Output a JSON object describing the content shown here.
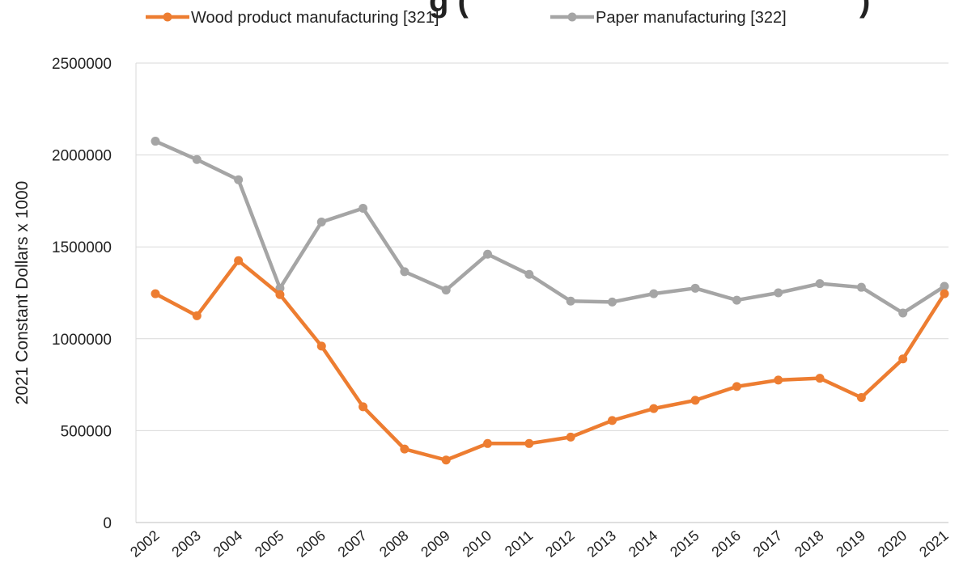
{
  "chart_data": {
    "type": "line",
    "title_fragment": "g (",
    "title_suffix_fragment": ")",
    "ylabel": "2021 Constant Dollars x 1000",
    "xlabel": "",
    "categories": [
      "2002",
      "2003",
      "2004",
      "2005",
      "2006",
      "2007",
      "2008",
      "2009",
      "2010",
      "2011",
      "2012",
      "2013",
      "2014",
      "2015",
      "2016",
      "2017",
      "2018",
      "2019",
      "2020",
      "2021"
    ],
    "series": [
      {
        "name": "Wood product manufacturing [321]",
        "color": "#ed7d31",
        "values": [
          1245000,
          1125000,
          1425000,
          1240000,
          960000,
          630000,
          400000,
          340000,
          430000,
          430000,
          465000,
          555000,
          620000,
          665000,
          740000,
          775000,
          785000,
          680000,
          890000,
          1245000
        ]
      },
      {
        "name": "Paper manufacturing  [322]",
        "color": "#a5a5a5",
        "values": [
          2075000,
          1975000,
          1865000,
          1275000,
          1635000,
          1710000,
          1365000,
          1265000,
          1460000,
          1350000,
          1205000,
          1200000,
          1245000,
          1275000,
          1210000,
          1250000,
          1300000,
          1280000,
          1140000,
          1285000
        ]
      }
    ],
    "ylim": [
      0,
      2500000
    ],
    "yticks": [
      "0",
      "500000",
      "1000000",
      "1500000",
      "2000000",
      "2500000"
    ],
    "grid": true,
    "legend_position": "top"
  }
}
